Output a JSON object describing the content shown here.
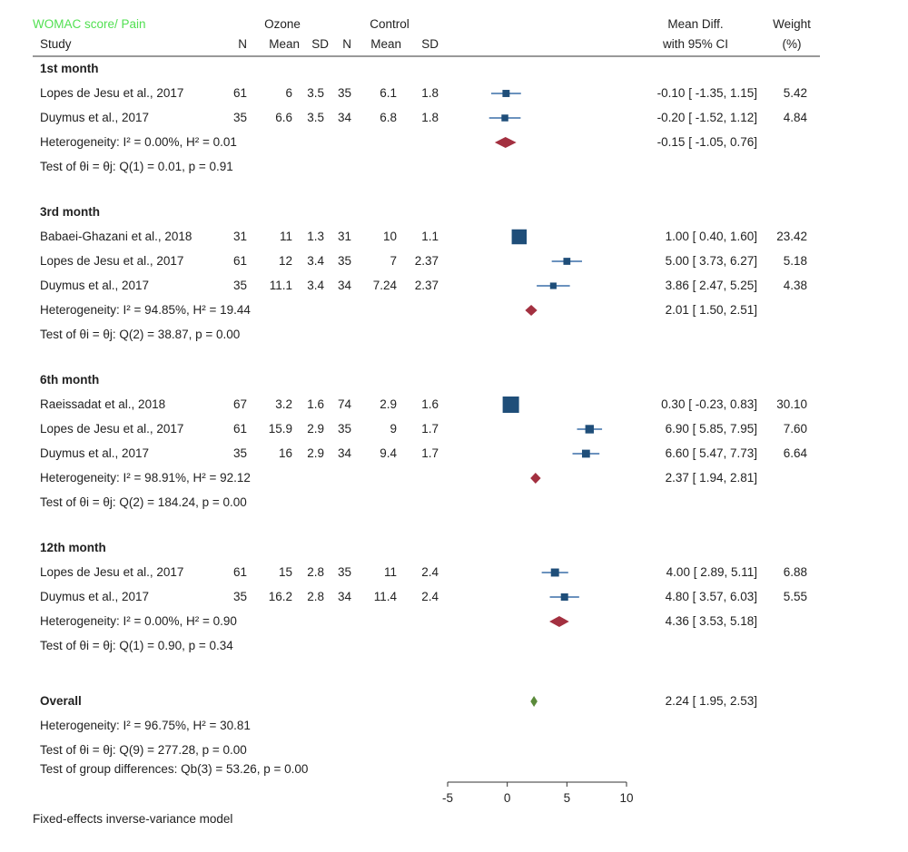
{
  "header": {
    "title": "WOMAC score/ Pain",
    "study": "Study",
    "ozone": "Ozone",
    "control": "Control",
    "n": "N",
    "mean": "Mean",
    "sd": "SD",
    "effect_line1": "Mean Diff.",
    "effect_line2": "with 95% CI",
    "weight_line1": "Weight",
    "weight_line2": "(%)"
  },
  "footer": {
    "group_test": "Test of group differences: Qb(3) = 53.26, p = 0.00",
    "model": "Fixed-effects inverse-variance model"
  },
  "colors": {
    "study_marker": "#1f4e79",
    "subgroup_diamond": "#a33040",
    "overall_diamond": "#5a8a3a",
    "title_green": "#52e052"
  },
  "chart_data": {
    "type": "forest",
    "xlim": [
      -5,
      10
    ],
    "xticks": [
      -5,
      0,
      5,
      10
    ],
    "reference_line": null,
    "groups": [
      {
        "name": "1st month",
        "studies": [
          {
            "study": "Lopes de Jesu et al., 2017",
            "n1": "61",
            "mean1": "6",
            "sd1": "3.5",
            "n2": "35",
            "mean2": "6.1",
            "sd2": "1.8",
            "md": -0.1,
            "lo": -1.35,
            "hi": 1.15,
            "ci_text": "-0.10 [ -1.35, 1.15]",
            "weight": "5.42"
          },
          {
            "study": "Duymus et al., 2017",
            "n1": "35",
            "mean1": "6.6",
            "sd1": "3.5",
            "n2": "34",
            "mean2": "6.8",
            "sd2": "1.8",
            "md": -0.2,
            "lo": -1.52,
            "hi": 1.12,
            "ci_text": "-0.20 [ -1.52, 1.12]",
            "weight": "4.84"
          }
        ],
        "summary": {
          "md": -0.15,
          "lo": -1.05,
          "hi": 0.76,
          "ci_text": "-0.15 [ -1.05, 0.76]"
        },
        "heterogeneity": "Heterogeneity: I² = 0.00%, H² = 0.01",
        "test": "Test of θi = θj: Q(1) = 0.01, p = 0.91"
      },
      {
        "name": "3rd month",
        "studies": [
          {
            "study": "Babaei-Ghazani et al., 2018",
            "n1": "31",
            "mean1": "11",
            "sd1": "1.3",
            "n2": "31",
            "mean2": "10",
            "sd2": "1.1",
            "md": 1.0,
            "lo": 0.4,
            "hi": 1.6,
            "ci_text": "1.00 [ 0.40, 1.60]",
            "weight": "23.42"
          },
          {
            "study": "Lopes de Jesu et al., 2017",
            "n1": "61",
            "mean1": "12",
            "sd1": "3.4",
            "n2": "35",
            "mean2": "7",
            "sd2": "2.37",
            "md": 5.0,
            "lo": 3.73,
            "hi": 6.27,
            "ci_text": "5.00 [ 3.73, 6.27]",
            "weight": "5.18"
          },
          {
            "study": "Duymus et al., 2017",
            "n1": "35",
            "mean1": "11.1",
            "sd1": "3.4",
            "n2": "34",
            "mean2": "7.24",
            "sd2": "2.37",
            "md": 3.86,
            "lo": 2.47,
            "hi": 5.25,
            "ci_text": "3.86 [ 2.47, 5.25]",
            "weight": "4.38"
          }
        ],
        "summary": {
          "md": 2.01,
          "lo": 1.5,
          "hi": 2.51,
          "ci_text": "2.01 [ 1.50, 2.51]"
        },
        "heterogeneity": "Heterogeneity: I² = 94.85%, H² = 19.44",
        "test": "Test of θi = θj: Q(2) = 38.87, p = 0.00"
      },
      {
        "name": "6th month",
        "studies": [
          {
            "study": "Raeissadat et al., 2018",
            "n1": "67",
            "mean1": "3.2",
            "sd1": "1.6",
            "n2": "74",
            "mean2": "2.9",
            "sd2": "1.6",
            "md": 0.3,
            "lo": -0.23,
            "hi": 0.83,
            "ci_text": "0.30 [ -0.23, 0.83]",
            "weight": "30.10"
          },
          {
            "study": "Lopes de Jesu et al., 2017",
            "n1": "61",
            "mean1": "15.9",
            "sd1": "2.9",
            "n2": "35",
            "mean2": "9",
            "sd2": "1.7",
            "md": 6.9,
            "lo": 5.85,
            "hi": 7.95,
            "ci_text": "6.90 [ 5.85, 7.95]",
            "weight": "7.60"
          },
          {
            "study": "Duymus et al., 2017",
            "n1": "35",
            "mean1": "16",
            "sd1": "2.9",
            "n2": "34",
            "mean2": "9.4",
            "sd2": "1.7",
            "md": 6.6,
            "lo": 5.47,
            "hi": 7.73,
            "ci_text": "6.60 [ 5.47, 7.73]",
            "weight": "6.64"
          }
        ],
        "summary": {
          "md": 2.37,
          "lo": 1.94,
          "hi": 2.81,
          "ci_text": "2.37 [ 1.94, 2.81]"
        },
        "heterogeneity": "Heterogeneity: I² = 98.91%, H² = 92.12",
        "test": "Test of θi = θj: Q(2) = 184.24, p = 0.00"
      },
      {
        "name": "12th month",
        "studies": [
          {
            "study": "Lopes de Jesu et al., 2017",
            "n1": "61",
            "mean1": "15",
            "sd1": "2.8",
            "n2": "35",
            "mean2": "11",
            "sd2": "2.4",
            "md": 4.0,
            "lo": 2.89,
            "hi": 5.11,
            "ci_text": "4.00 [ 2.89, 5.11]",
            "weight": "6.88"
          },
          {
            "study": "Duymus et al., 2017",
            "n1": "35",
            "mean1": "16.2",
            "sd1": "2.8",
            "n2": "34",
            "mean2": "11.4",
            "sd2": "2.4",
            "md": 4.8,
            "lo": 3.57,
            "hi": 6.03,
            "ci_text": "4.80 [ 3.57, 6.03]",
            "weight": "5.55"
          }
        ],
        "summary": {
          "md": 4.36,
          "lo": 3.53,
          "hi": 5.18,
          "ci_text": "4.36 [ 3.53, 5.18]"
        },
        "heterogeneity": "Heterogeneity: I² = 0.00%, H² = 0.90",
        "test": "Test of θi = θj: Q(1) = 0.90, p = 0.34"
      }
    ],
    "overall": {
      "label": "Overall",
      "md": 2.24,
      "lo": 1.95,
      "hi": 2.53,
      "ci_text": "2.24 [ 1.95, 2.53]",
      "heterogeneity": "Heterogeneity: I² = 96.75%, H² = 30.81",
      "test": "Test of θi = θj: Q(9) = 277.28, p = 0.00"
    }
  }
}
